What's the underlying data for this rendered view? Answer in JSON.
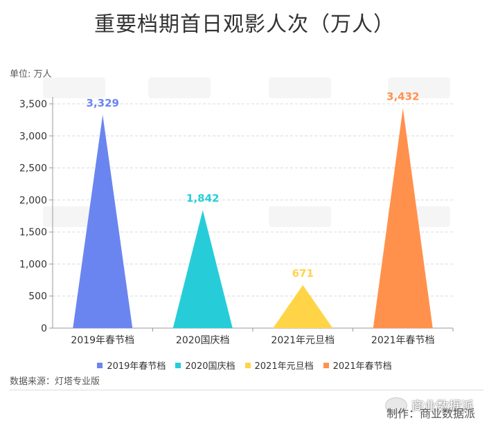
{
  "title": "重要档期首日观影人次（万人）",
  "unit_label": "单位: 万人",
  "source": "数据来源：灯塔专业版",
  "footer": "制作：商业数据派",
  "wechat_name": "商业数据派",
  "chart_data": {
    "type": "triangle-bar",
    "categories": [
      "2019年春节档",
      "2020国庆档",
      "2021年元旦档",
      "2021年春节档"
    ],
    "values": [
      3329,
      1842,
      671,
      3432
    ],
    "value_labels": [
      "3,329",
      "1,842",
      "671",
      "3,432"
    ],
    "colors": [
      "#6b85f0",
      "#26cdd9",
      "#ffd447",
      "#ff914d"
    ],
    "yticks": [
      "0",
      "500",
      "1,000",
      "1,500",
      "2,000",
      "2,500",
      "3,000",
      "3,500"
    ],
    "ylim": [
      0,
      3500
    ],
    "grid": true,
    "legend": "bottom"
  }
}
